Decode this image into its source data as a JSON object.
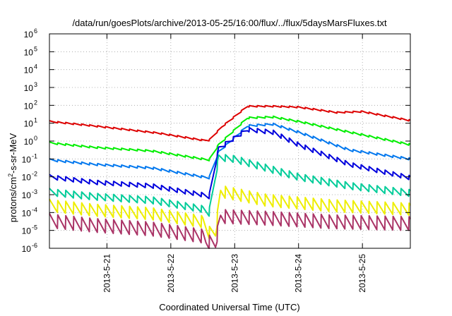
{
  "chart_data": {
    "type": "line",
    "title": "/data/run/goesPlots/archive/2013-05-25/16:00/flux/../flux/5daysMarsFluxes.txt",
    "xlabel": "Coordinated Universal Time (UTC)",
    "ylabel_parts": [
      "protons/cm",
      "2",
      "-s-sr-MeV"
    ],
    "y_scale": "log",
    "ylim": [
      1e-06,
      1000000.0
    ],
    "xlim_days": [
      20.1,
      25.75
    ],
    "x_unit": "day of May 2013 (UTC)",
    "grid": true,
    "x_ticks": [
      {
        "day": 21,
        "label": "2013-5-21"
      },
      {
        "day": 22,
        "label": "2013-5-22"
      },
      {
        "day": 23,
        "label": "2013-5-23"
      },
      {
        "day": 24,
        "label": "2013-5-24"
      },
      {
        "day": 25,
        "label": "2013-5-25"
      }
    ],
    "y_ticks": [
      {
        "exp": -6,
        "label": "10",
        "sup": "-6"
      },
      {
        "exp": -5,
        "label": "10",
        "sup": "-5"
      },
      {
        "exp": -4,
        "label": "10",
        "sup": "-4"
      },
      {
        "exp": -3,
        "label": "10",
        "sup": "-3"
      },
      {
        "exp": -2,
        "label": "10",
        "sup": "-2"
      },
      {
        "exp": -1,
        "label": "10",
        "sup": "-1"
      },
      {
        "exp": 0,
        "label": "10",
        "sup": "0"
      },
      {
        "exp": 1,
        "label": "10",
        "sup": "1"
      },
      {
        "exp": 2,
        "label": "10",
        "sup": "2"
      },
      {
        "exp": 3,
        "label": "10",
        "sup": "3"
      },
      {
        "exp": 4,
        "label": "10",
        "sup": "4"
      },
      {
        "exp": 5,
        "label": "10",
        "sup": "5"
      },
      {
        "exp": 6,
        "label": "10",
        "sup": "6"
      }
    ],
    "series": [
      {
        "color": "#dd0000",
        "sawtooth": 0.08,
        "points": [
          [
            20.1,
            1.1
          ],
          [
            20.8,
            0.85
          ],
          [
            21.8,
            0.45
          ],
          [
            22.5,
            0.05
          ],
          [
            22.6,
            0.05
          ],
          [
            22.8,
            0.8
          ],
          [
            23.2,
            1.95
          ],
          [
            23.6,
            1.95
          ],
          [
            24.0,
            1.9
          ],
          [
            24.6,
            1.6
          ],
          [
            25.0,
            1.65
          ],
          [
            25.75,
            1.15
          ]
        ]
      },
      {
        "color": "#00ee00",
        "sawtooth": 0.1,
        "points": [
          [
            20.1,
            -0.1
          ],
          [
            20.8,
            -0.35
          ],
          [
            21.7,
            -0.55
          ],
          [
            22.5,
            -1.0
          ],
          [
            22.6,
            -1.05
          ],
          [
            22.75,
            -0.2
          ],
          [
            23.2,
            1.3
          ],
          [
            23.6,
            1.35
          ],
          [
            24.0,
            1.1
          ],
          [
            24.8,
            0.5
          ],
          [
            25.75,
            -0.2
          ]
        ]
      },
      {
        "color": "#0077ee",
        "sawtooth": 0.12,
        "points": [
          [
            20.1,
            -1.05
          ],
          [
            20.8,
            -1.3
          ],
          [
            21.7,
            -1.5
          ],
          [
            22.5,
            -2.0
          ],
          [
            22.6,
            -2.05
          ],
          [
            22.75,
            -0.6
          ],
          [
            23.2,
            0.85
          ],
          [
            23.6,
            0.95
          ],
          [
            24.0,
            0.5
          ],
          [
            24.8,
            -0.5
          ],
          [
            25.75,
            -1.0
          ]
        ]
      },
      {
        "color": "#0000dd",
        "sawtooth": 0.25,
        "points": [
          [
            20.1,
            -2.0
          ],
          [
            20.8,
            -2.3
          ],
          [
            21.7,
            -2.5
          ],
          [
            22.5,
            -3.0
          ],
          [
            22.6,
            -3.1
          ],
          [
            22.75,
            -0.4
          ],
          [
            23.2,
            0.65
          ],
          [
            23.6,
            0.5
          ],
          [
            24.0,
            -0.2
          ],
          [
            24.8,
            -1.3
          ],
          [
            25.75,
            -2.05
          ]
        ]
      },
      {
        "color": "#00cc99",
        "sawtooth": 0.4,
        "points": [
          [
            20.1,
            -2.85
          ],
          [
            20.8,
            -3.1
          ],
          [
            21.7,
            -3.3
          ],
          [
            22.5,
            -3.8
          ],
          [
            22.6,
            -4.0
          ],
          [
            22.75,
            -0.9
          ],
          [
            23.0,
            -1.0
          ],
          [
            23.5,
            -1.5
          ],
          [
            24.0,
            -2.0
          ],
          [
            24.8,
            -2.5
          ],
          [
            25.75,
            -2.9
          ]
        ]
      },
      {
        "color": "#eeee00",
        "sawtooth": 0.7,
        "points": [
          [
            20.1,
            -3.6
          ],
          [
            20.8,
            -3.85
          ],
          [
            21.7,
            -4.05
          ],
          [
            22.5,
            -4.5
          ],
          [
            22.6,
            -5.1
          ],
          [
            22.7,
            -5.1
          ],
          [
            22.78,
            -2.8
          ],
          [
            23.5,
            -3.3
          ],
          [
            24.5,
            -3.6
          ],
          [
            25.75,
            -3.8
          ]
        ]
      },
      {
        "color": "#aa3366",
        "sawtooth": 0.8,
        "points": [
          [
            20.1,
            -4.45
          ],
          [
            20.8,
            -4.7
          ],
          [
            21.7,
            -4.9
          ],
          [
            22.5,
            -5.3
          ],
          [
            22.55,
            -5.6
          ],
          [
            22.7,
            -5.7
          ],
          [
            22.78,
            -4.2
          ],
          [
            23.5,
            -4.3
          ],
          [
            24.5,
            -4.5
          ],
          [
            25.75,
            -4.6
          ]
        ]
      }
    ]
  }
}
